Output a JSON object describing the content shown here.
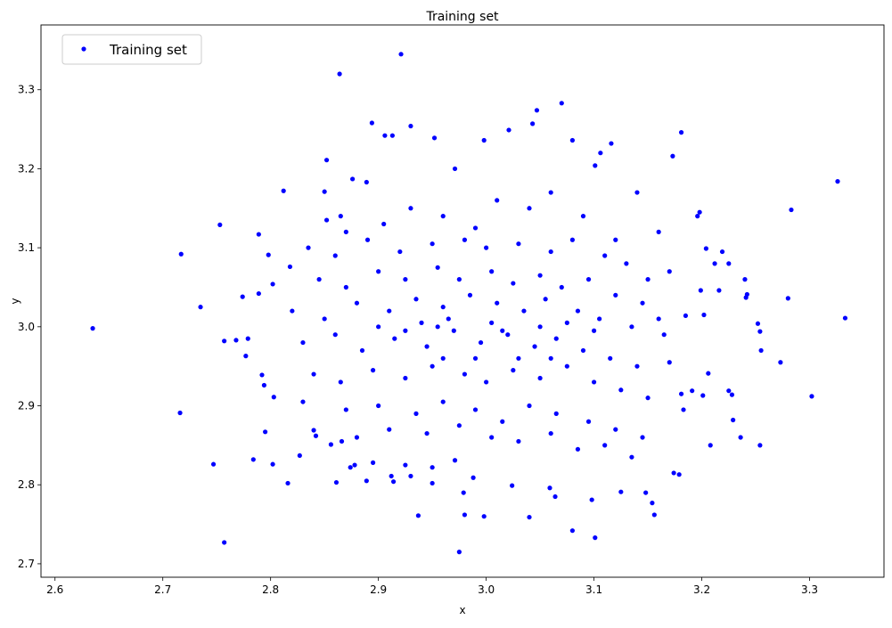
{
  "chart_data": {
    "type": "scatter",
    "title": "Training set",
    "xlabel": "x",
    "ylabel": "y",
    "xlim": [
      2.587,
      3.369
    ],
    "ylim": [
      2.683,
      3.382
    ],
    "xticks": [
      "2.6",
      "2.7",
      "2.8",
      "2.9",
      "3.0",
      "3.1",
      "3.2",
      "3.3"
    ],
    "yticks": [
      "2.7",
      "2.8",
      "2.9",
      "3.0",
      "3.1",
      "3.2",
      "3.3"
    ],
    "grid": false,
    "legend": {
      "position": "top-left",
      "entries": [
        "Training set"
      ]
    },
    "series": [
      {
        "name": "Training set",
        "color": "#0000ff",
        "points": [
          [
            2.635,
            2.998
          ],
          [
            2.717,
            3.092
          ],
          [
            2.716,
            2.891
          ],
          [
            2.747,
            2.826
          ],
          [
            2.757,
            2.727
          ],
          [
            2.753,
            3.129
          ],
          [
            2.735,
            3.025
          ],
          [
            2.864,
            3.32
          ],
          [
            2.921,
            3.345
          ],
          [
            3.07,
            3.283
          ],
          [
            3.047,
            3.274
          ],
          [
            3.181,
            3.246
          ],
          [
            3.326,
            3.184
          ],
          [
            3.333,
            3.011
          ],
          [
            3.302,
            2.912
          ],
          [
            3.283,
            3.148
          ],
          [
            3.273,
            2.955
          ],
          [
            3.254,
            2.85
          ],
          [
            2.975,
            2.715
          ],
          [
            3.101,
            2.733
          ],
          [
            3.08,
            2.742
          ],
          [
            2.937,
            2.761
          ],
          [
            3.04,
            2.759
          ],
          [
            2.998,
            2.76
          ],
          [
            2.98,
            2.762
          ],
          [
            3.156,
            2.762
          ],
          [
            2.784,
            2.832
          ],
          [
            2.802,
            2.826
          ],
          [
            2.816,
            2.802
          ],
          [
            2.861,
            2.803
          ],
          [
            2.894,
            3.258
          ],
          [
            2.906,
            3.242
          ],
          [
            2.913,
            3.242
          ],
          [
            2.93,
            3.254
          ],
          [
            2.952,
            3.239
          ],
          [
            2.971,
            3.2
          ],
          [
            2.998,
            3.236
          ],
          [
            3.043,
            3.257
          ],
          [
            3.021,
            3.249
          ],
          [
            3.116,
            3.232
          ],
          [
            3.106,
            3.22
          ],
          [
            3.173,
            3.216
          ],
          [
            3.101,
            3.204
          ],
          [
            3.08,
            3.236
          ],
          [
            2.852,
            3.211
          ],
          [
            2.812,
            3.172
          ],
          [
            2.85,
            3.171
          ],
          [
            2.876,
            3.187
          ],
          [
            2.889,
            3.183
          ],
          [
            2.789,
            3.117
          ],
          [
            2.774,
            3.038
          ],
          [
            2.789,
            3.042
          ],
          [
            2.768,
            2.983
          ],
          [
            2.757,
            2.982
          ],
          [
            2.779,
            2.985
          ],
          [
            2.777,
            2.963
          ],
          [
            2.792,
            2.939
          ],
          [
            2.794,
            2.926
          ],
          [
            2.803,
            2.911
          ],
          [
            2.795,
            2.867
          ],
          [
            2.802,
            3.054
          ],
          [
            2.798,
            3.091
          ],
          [
            2.818,
            3.076
          ],
          [
            3.198,
            3.145
          ],
          [
            3.196,
            3.14
          ],
          [
            3.204,
            3.099
          ],
          [
            3.219,
            3.095
          ],
          [
            3.212,
            3.08
          ],
          [
            3.225,
            3.08
          ],
          [
            3.24,
            3.06
          ],
          [
            3.242,
            3.041
          ],
          [
            3.241,
            3.037
          ],
          [
            3.252,
            3.004
          ],
          [
            3.254,
            2.994
          ],
          [
            3.255,
            2.97
          ],
          [
            3.28,
            3.036
          ],
          [
            3.216,
            3.046
          ],
          [
            3.199,
            3.046
          ],
          [
            3.202,
            3.015
          ],
          [
            3.185,
            3.014
          ],
          [
            3.206,
            2.941
          ],
          [
            3.191,
            2.919
          ],
          [
            3.181,
            2.915
          ],
          [
            3.201,
            2.913
          ],
          [
            3.225,
            2.919
          ],
          [
            3.228,
            2.914
          ],
          [
            3.229,
            2.882
          ],
          [
            3.236,
            2.86
          ],
          [
            3.208,
            2.85
          ],
          [
            3.183,
            2.895
          ],
          [
            3.174,
            2.815
          ],
          [
            3.179,
            2.813
          ],
          [
            3.148,
            2.79
          ],
          [
            3.154,
            2.777
          ],
          [
            3.125,
            2.791
          ],
          [
            3.098,
            2.781
          ],
          [
            3.059,
            2.796
          ],
          [
            3.064,
            2.785
          ],
          [
            3.024,
            2.799
          ],
          [
            2.979,
            2.79
          ],
          [
            2.988,
            2.809
          ],
          [
            2.93,
            2.811
          ],
          [
            2.912,
            2.811
          ],
          [
            2.914,
            2.804
          ],
          [
            2.889,
            2.805
          ],
          [
            2.95,
            2.802
          ],
          [
            2.95,
            2.822
          ],
          [
            2.971,
            2.831
          ],
          [
            2.925,
            2.825
          ],
          [
            2.895,
            2.828
          ],
          [
            2.878,
            2.825
          ],
          [
            2.874,
            2.822
          ],
          [
            2.856,
            2.851
          ],
          [
            2.84,
            2.869
          ],
          [
            2.842,
            2.862
          ],
          [
            2.866,
            2.855
          ],
          [
            2.827,
            2.837
          ],
          [
            2.852,
            3.135
          ],
          [
            2.865,
            3.14
          ],
          [
            2.87,
            3.12
          ],
          [
            2.905,
            3.13
          ],
          [
            2.93,
            3.15
          ],
          [
            2.96,
            3.14
          ],
          [
            2.99,
            3.125
          ],
          [
            3.01,
            3.16
          ],
          [
            3.04,
            3.15
          ],
          [
            3.06,
            3.17
          ],
          [
            3.09,
            3.14
          ],
          [
            3.12,
            3.11
          ],
          [
            3.14,
            3.17
          ],
          [
            3.16,
            3.12
          ],
          [
            2.835,
            3.1
          ],
          [
            2.86,
            3.09
          ],
          [
            2.89,
            3.11
          ],
          [
            2.92,
            3.095
          ],
          [
            2.95,
            3.105
          ],
          [
            2.98,
            3.11
          ],
          [
            3.0,
            3.1
          ],
          [
            3.03,
            3.105
          ],
          [
            3.06,
            3.095
          ],
          [
            3.08,
            3.11
          ],
          [
            3.11,
            3.09
          ],
          [
            3.13,
            3.08
          ],
          [
            3.15,
            3.06
          ],
          [
            3.17,
            3.07
          ],
          [
            2.845,
            3.06
          ],
          [
            2.87,
            3.05
          ],
          [
            2.9,
            3.07
          ],
          [
            2.925,
            3.06
          ],
          [
            2.955,
            3.075
          ],
          [
            2.975,
            3.06
          ],
          [
            3.005,
            3.07
          ],
          [
            3.025,
            3.055
          ],
          [
            3.05,
            3.065
          ],
          [
            3.07,
            3.05
          ],
          [
            3.095,
            3.06
          ],
          [
            3.12,
            3.04
          ],
          [
            3.145,
            3.03
          ],
          [
            3.16,
            3.01
          ],
          [
            2.82,
            3.02
          ],
          [
            2.85,
            3.01
          ],
          [
            2.88,
            3.03
          ],
          [
            2.91,
            3.02
          ],
          [
            2.935,
            3.035
          ],
          [
            2.96,
            3.025
          ],
          [
            2.985,
            3.04
          ],
          [
            3.01,
            3.03
          ],
          [
            3.035,
            3.02
          ],
          [
            3.055,
            3.035
          ],
          [
            3.085,
            3.02
          ],
          [
            3.105,
            3.01
          ],
          [
            3.135,
            3.0
          ],
          [
            3.165,
            2.99
          ],
          [
            2.83,
            2.98
          ],
          [
            2.86,
            2.99
          ],
          [
            2.885,
            2.97
          ],
          [
            2.915,
            2.985
          ],
          [
            2.945,
            2.975
          ],
          [
            2.97,
            2.995
          ],
          [
            2.995,
            2.98
          ],
          [
            3.02,
            2.99
          ],
          [
            3.045,
            2.975
          ],
          [
            3.065,
            2.985
          ],
          [
            3.09,
            2.97
          ],
          [
            3.115,
            2.96
          ],
          [
            3.14,
            2.95
          ],
          [
            3.17,
            2.955
          ],
          [
            2.84,
            2.94
          ],
          [
            2.865,
            2.93
          ],
          [
            2.895,
            2.945
          ],
          [
            2.925,
            2.935
          ],
          [
            2.95,
            2.95
          ],
          [
            2.98,
            2.94
          ],
          [
            3.0,
            2.93
          ],
          [
            3.025,
            2.945
          ],
          [
            3.05,
            2.935
          ],
          [
            3.075,
            2.95
          ],
          [
            3.1,
            2.93
          ],
          [
            3.125,
            2.92
          ],
          [
            3.15,
            2.91
          ],
          [
            2.83,
            2.905
          ],
          [
            2.87,
            2.895
          ],
          [
            2.9,
            2.9
          ],
          [
            2.935,
            2.89
          ],
          [
            2.96,
            2.905
          ],
          [
            2.99,
            2.895
          ],
          [
            3.015,
            2.88
          ],
          [
            3.04,
            2.9
          ],
          [
            3.065,
            2.89
          ],
          [
            3.095,
            2.88
          ],
          [
            3.12,
            2.87
          ],
          [
            3.145,
            2.86
          ],
          [
            2.88,
            2.86
          ],
          [
            2.91,
            2.87
          ],
          [
            2.945,
            2.865
          ],
          [
            2.975,
            2.875
          ],
          [
            3.005,
            2.86
          ],
          [
            3.03,
            2.855
          ],
          [
            3.06,
            2.865
          ],
          [
            3.085,
            2.845
          ],
          [
            3.11,
            2.85
          ],
          [
            3.135,
            2.835
          ],
          [
            2.955,
            3.0
          ],
          [
            2.965,
            3.01
          ],
          [
            3.005,
            3.005
          ],
          [
            3.015,
            2.995
          ],
          [
            2.94,
            3.005
          ],
          [
            3.05,
            3.0
          ],
          [
            2.925,
            2.995
          ],
          [
            3.075,
            3.005
          ],
          [
            2.99,
            2.96
          ],
          [
            3.03,
            2.96
          ],
          [
            2.96,
            2.96
          ],
          [
            3.06,
            2.96
          ],
          [
            2.9,
            3.0
          ],
          [
            3.1,
            2.995
          ]
        ]
      }
    ]
  }
}
